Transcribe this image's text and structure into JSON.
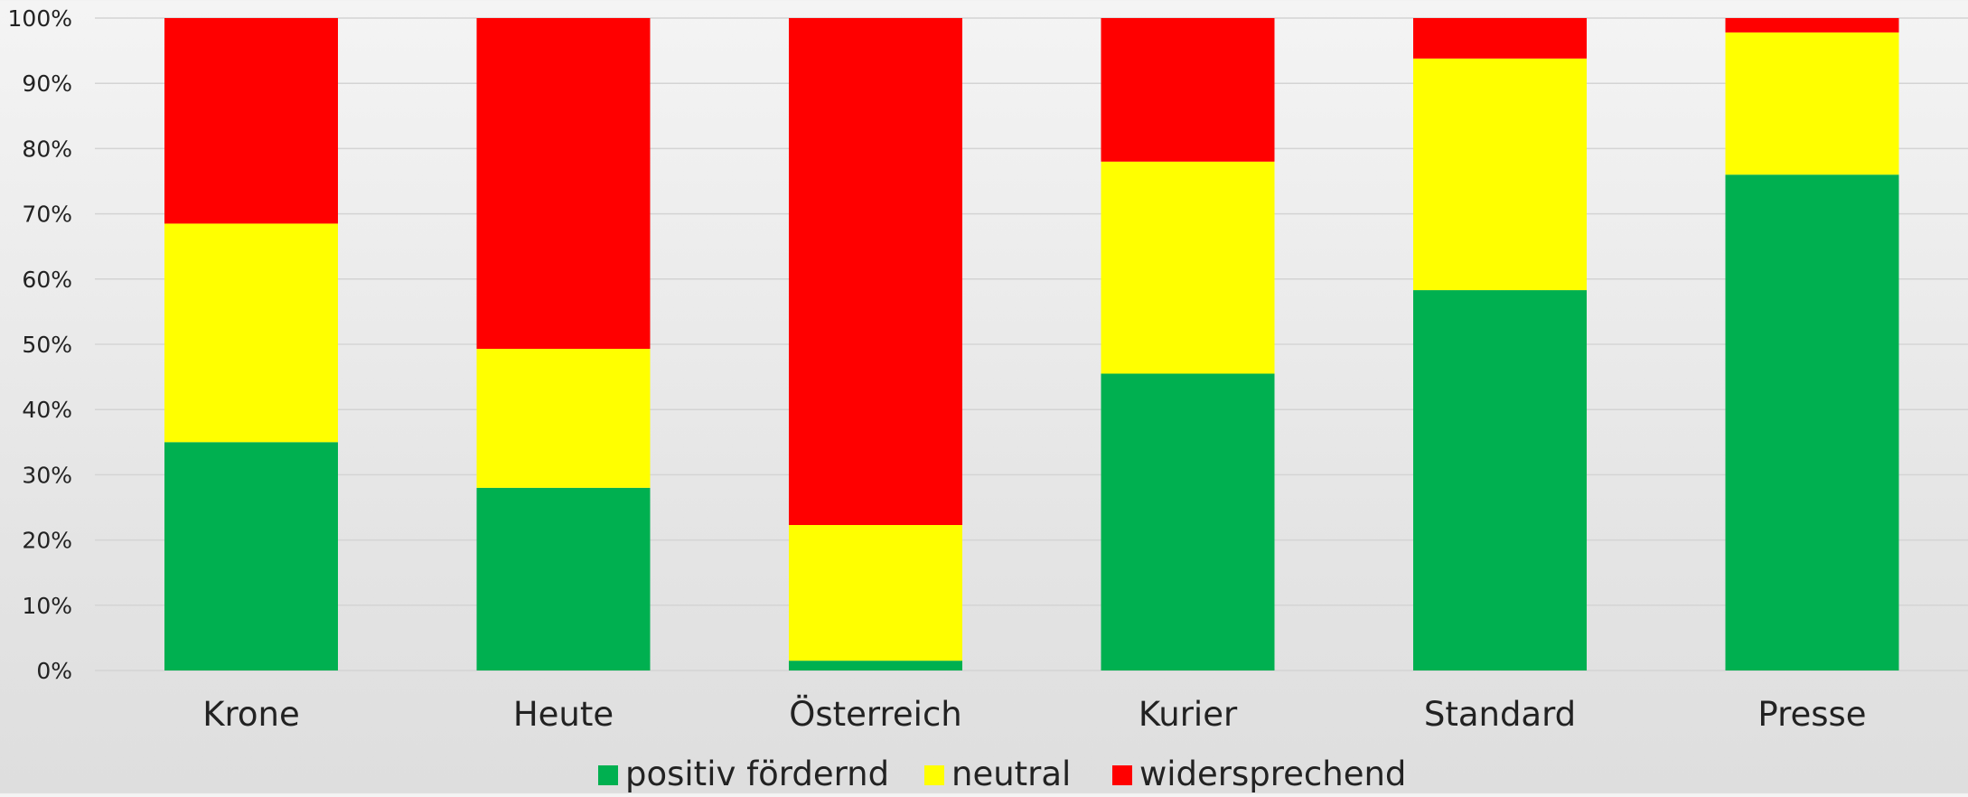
{
  "chart_data": {
    "type": "bar",
    "stacked": true,
    "percent": true,
    "categories": [
      "Krone",
      "Heute",
      "Österreich",
      "Kurier",
      "Standard",
      "Presse"
    ],
    "series": [
      {
        "name": "positiv fördernd",
        "color": "#00b050",
        "values": [
          35,
          28,
          1.5,
          45.5,
          58.3,
          76
        ]
      },
      {
        "name": "neutral",
        "color": "#ffff00",
        "values": [
          33.5,
          21.3,
          20.8,
          32.5,
          35.5,
          21.8
        ]
      },
      {
        "name": "widersprechend",
        "color": "#ff0000",
        "values": [
          31.5,
          50.7,
          77.7,
          22,
          6.2,
          2.2
        ]
      }
    ],
    "yticks": [
      "0%",
      "10%",
      "20%",
      "30%",
      "40%",
      "50%",
      "60%",
      "70%",
      "80%",
      "90%",
      "100%"
    ],
    "ylim": [
      0,
      100
    ],
    "grid": true,
    "legend_position": "bottom-center",
    "gridline_color": "#d4d4d4"
  }
}
